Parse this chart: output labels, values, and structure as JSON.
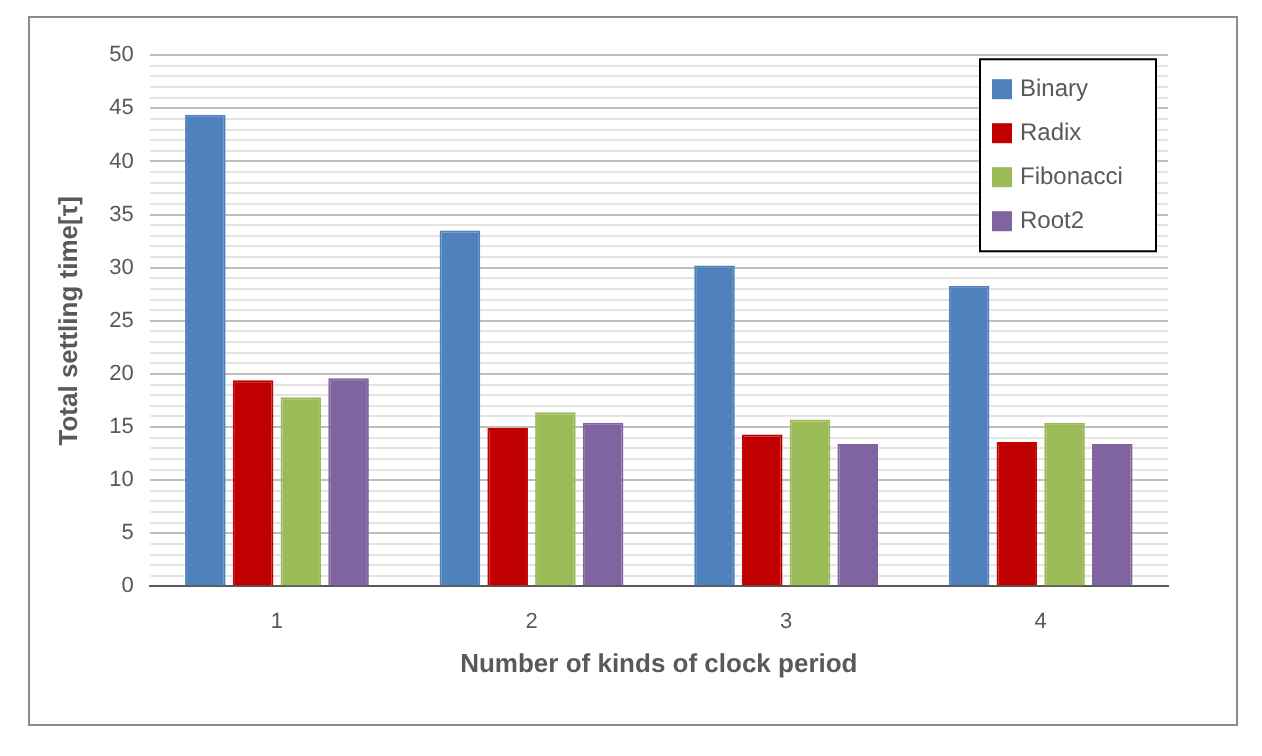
{
  "chart_data": {
    "type": "bar",
    "xlabel": "Number of kinds of clock period",
    "ylabel": "Total settling time[τ]",
    "categories": [
      "1",
      "2",
      "3",
      "4"
    ],
    "series": [
      {
        "name": "Binary",
        "color": "#4f81bd",
        "values": [
          44.4,
          33.5,
          30.2,
          28.3
        ]
      },
      {
        "name": "Radix",
        "color": "#c00000",
        "values": [
          19.4,
          14.9,
          14.3,
          13.6
        ]
      },
      {
        "name": "Fibonacci",
        "color": "#9bbb59",
        "values": [
          17.8,
          16.4,
          15.7,
          15.4
        ]
      },
      {
        "name": "Root2",
        "color": "#8064a2",
        "values": [
          19.6,
          15.4,
          13.4,
          13.4
        ]
      }
    ],
    "ylim": [
      0,
      50
    ],
    "yticks": [
      0,
      {
        "value": 1,
        "label": null
      },
      {
        "value": 2,
        "label": null
      },
      {
        "value": 3,
        "label": null
      },
      {
        "value": 4,
        "label": null
      },
      5,
      {
        "value": 6,
        "label": null
      },
      {
        "value": 7,
        "label": null
      },
      {
        "value": 8,
        "label": null
      },
      {
        "value": 9,
        "label": null
      },
      10,
      {
        "value": 11,
        "label": null
      },
      {
        "value": 12,
        "label": null
      },
      {
        "value": 13,
        "label": null
      },
      {
        "value": 14,
        "label": null
      },
      15,
      {
        "value": 16,
        "label": null
      },
      {
        "value": 17,
        "label": null
      },
      {
        "value": 18,
        "label": null
      },
      {
        "value": 19,
        "label": null
      },
      20,
      {
        "value": 21,
        "label": null
      },
      {
        "value": 22,
        "label": null
      },
      {
        "value": 23,
        "label": null
      },
      {
        "value": 24,
        "label": null
      },
      25,
      {
        "value": 26,
        "label": null
      },
      {
        "value": 27,
        "label": null
      },
      {
        "value": 28,
        "label": null
      },
      {
        "value": 29,
        "label": null
      },
      30,
      {
        "value": 31,
        "label": null
      },
      {
        "value": 32,
        "label": null
      },
      {
        "value": 33,
        "label": null
      },
      {
        "value": 34,
        "label": null
      },
      35,
      {
        "value": 36,
        "label": null
      },
      {
        "value": 37,
        "label": null
      },
      {
        "value": 38,
        "label": null
      },
      {
        "value": 39,
        "label": null
      },
      40,
      {
        "value": 41,
        "label": null
      },
      {
        "value": 42,
        "label": null
      },
      {
        "value": 43,
        "label": null
      },
      {
        "value": 44,
        "label": null
      },
      45,
      {
        "value": 46,
        "label": null
      },
      {
        "value": 47,
        "label": null
      },
      {
        "value": 48,
        "label": null
      },
      {
        "value": 49,
        "label": null
      },
      50
    ],
    "grid": "y",
    "legend": "top right"
  }
}
